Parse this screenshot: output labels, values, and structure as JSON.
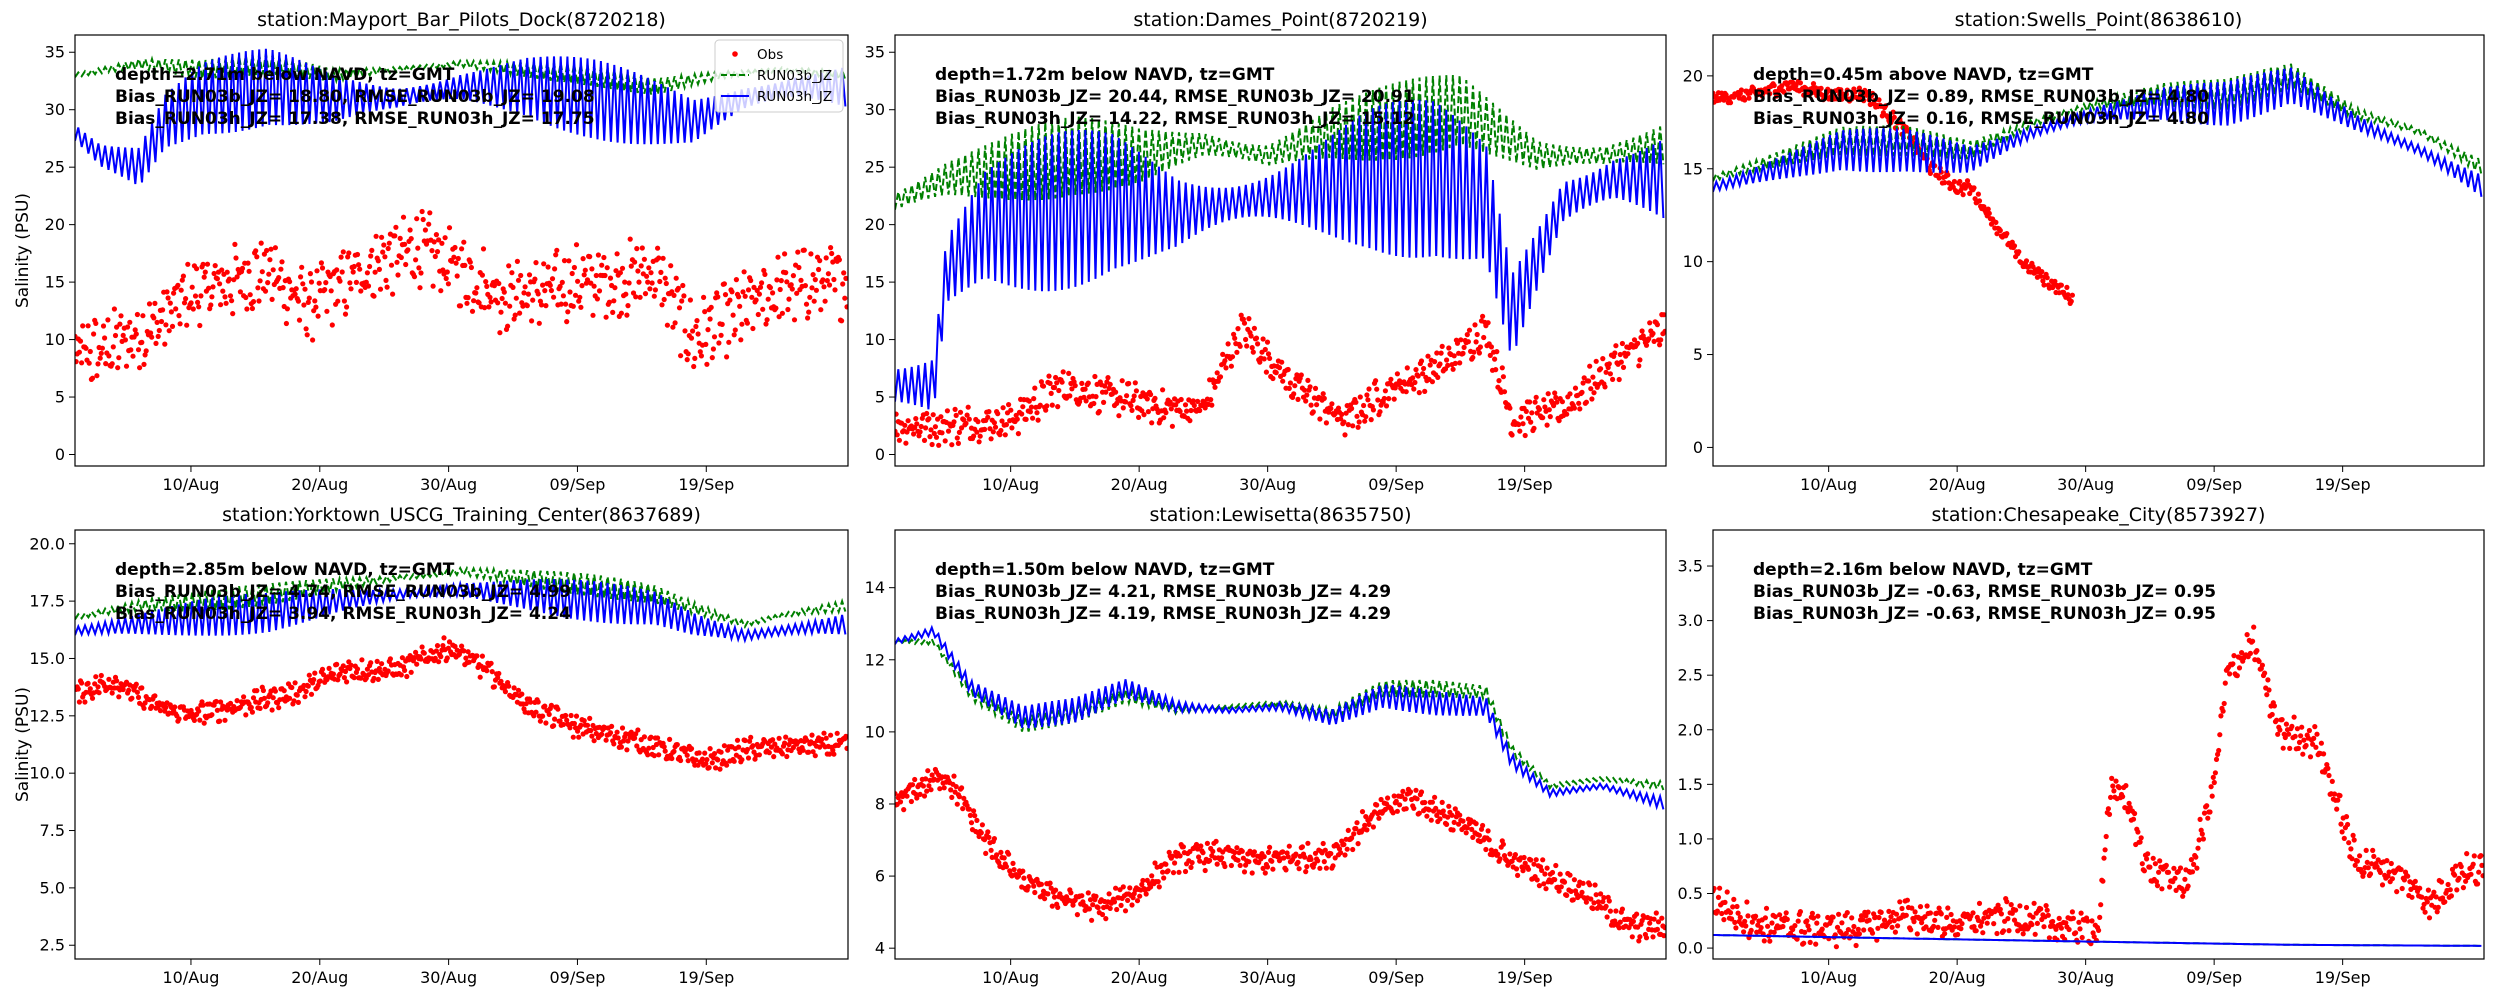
{
  "legend": {
    "panel": 0,
    "entries": [
      {
        "label": "Obs",
        "style": "marker",
        "color": "#ff0000"
      },
      {
        "label": "RUN03b_JZ",
        "style": "dashed",
        "color": "#008000"
      },
      {
        "label": "RUN03h_JZ",
        "style": "solid",
        "color": "#0000ff"
      }
    ]
  },
  "colors": {
    "obs": "#ff0000",
    "run03b": "#008000",
    "run03h": "#0000ff"
  },
  "chart_data": [
    {
      "type": "line",
      "title": "station:Mayport_Bar_Pilots_Dock(8720218)",
      "ylabel": "Salinity (PSU)",
      "xlabel": "",
      "x_range": [
        "2024-08-01",
        "2024-09-30"
      ],
      "x_ticks": [
        "10/Aug",
        "20/Aug",
        "30/Aug",
        "09/Sep",
        "19/Sep"
      ],
      "ylim": [
        -1,
        36.5
      ],
      "y_ticks": [
        "0",
        "5",
        "10",
        "15",
        "20",
        "25",
        "30",
        "35"
      ],
      "grid": false,
      "legend_position": "top-right",
      "annotations": [
        "depth=2.71m below NAVD, tz=GMT",
        "Bias_RUN03b_JZ= 18.80, RMSE_RUN03b_JZ= 19.08",
        "Bias_RUN03h_JZ= 17.38, RMSE_RUN03h_JZ= 17.75"
      ],
      "series": [
        {
          "name": "Obs",
          "kind": "scatter",
          "x": [
            "2024-08-01",
            "2024-08-03",
            "2024-08-05",
            "2024-08-07",
            "2024-08-10",
            "2024-08-13",
            "2024-08-16",
            "2024-08-19",
            "2024-08-22",
            "2024-08-25",
            "2024-08-28",
            "2024-08-31",
            "2024-09-03",
            "2024-09-06",
            "2024-09-09",
            "2024-09-12",
            "2024-09-15",
            "2024-09-18",
            "2024-09-21",
            "2024-09-24",
            "2024-09-27",
            "2024-09-30"
          ],
          "y": [
            8.5,
            9,
            10,
            11,
            14,
            15,
            16,
            13,
            15,
            17,
            18,
            16,
            14,
            14,
            15,
            15,
            16,
            10,
            12,
            14,
            15,
            15
          ],
          "spread": 5
        },
        {
          "name": "RUN03b_JZ",
          "kind": "dashed",
          "x": [
            "2024-08-01",
            "2024-08-06",
            "2024-08-11",
            "2024-08-16",
            "2024-08-21",
            "2024-08-26",
            "2024-08-31",
            "2024-09-05",
            "2024-09-10",
            "2024-09-15",
            "2024-09-20",
            "2024-09-25",
            "2024-09-30"
          ],
          "y": [
            33,
            34,
            33.5,
            34,
            33,
            33.5,
            34,
            33.5,
            33,
            32,
            33,
            33.5,
            33
          ],
          "amp": 1.3,
          "period": 0.52
        },
        {
          "name": "RUN03h_JZ",
          "kind": "solid",
          "x": [
            "2024-08-01",
            "2024-08-03",
            "2024-08-06",
            "2024-08-08",
            "2024-08-11",
            "2024-08-16",
            "2024-08-21",
            "2024-08-26",
            "2024-08-31",
            "2024-09-05",
            "2024-09-10",
            "2024-09-14",
            "2024-09-18",
            "2024-09-22",
            "2024-09-26",
            "2024-09-30"
          ],
          "y": [
            28,
            26,
            25,
            29,
            31,
            32,
            31,
            31,
            32,
            32,
            31,
            30,
            29,
            31,
            32,
            32
          ],
          "amp": 3.5,
          "period": 0.52
        }
      ]
    },
    {
      "type": "line",
      "title": "station:Dames_Point(8720219)",
      "ylabel": "",
      "xlabel": "",
      "x_range": [
        "2024-08-01",
        "2024-09-30"
      ],
      "x_ticks": [
        "10/Aug",
        "20/Aug",
        "30/Aug",
        "09/Sep",
        "19/Sep"
      ],
      "ylim": [
        -1,
        36.5
      ],
      "y_ticks": [
        "0",
        "5",
        "10",
        "15",
        "20",
        "25",
        "30",
        "35"
      ],
      "grid": false,
      "annotations": [
        "depth=1.72m below NAVD, tz=GMT",
        "Bias_RUN03b_JZ= 20.44, RMSE_RUN03b_JZ= 20.91",
        "Bias_RUN03h_JZ= 14.22, RMSE_RUN03h_JZ= 15.12"
      ],
      "series": [
        {
          "name": "Obs",
          "kind": "scatter",
          "x": [
            "2024-08-01",
            "2024-08-05",
            "2024-08-10",
            "2024-08-14",
            "2024-08-18",
            "2024-08-22",
            "2024-08-25",
            "2024-08-28",
            "2024-09-01",
            "2024-09-05",
            "2024-09-09",
            "2024-09-13",
            "2024-09-16",
            "2024-09-18",
            "2024-09-22",
            "2024-09-26",
            "2024-09-30"
          ],
          "y": [
            2.5,
            2.5,
            3,
            6,
            5,
            4,
            4,
            11,
            6,
            3,
            6,
            8,
            11,
            3,
            4,
            8,
            11
          ],
          "spread": 2.5
        },
        {
          "name": "RUN03b_JZ",
          "kind": "dashed",
          "x": [
            "2024-08-01",
            "2024-08-05",
            "2024-08-10",
            "2024-08-15",
            "2024-08-20",
            "2024-08-25",
            "2024-08-30",
            "2024-09-04",
            "2024-09-09",
            "2024-09-14",
            "2024-09-17",
            "2024-09-20",
            "2024-09-25",
            "2024-09-30"
          ],
          "y": [
            22,
            24,
            25,
            26,
            26,
            27,
            26,
            28,
            29,
            30,
            28,
            26,
            26,
            27
          ],
          "amp": 5,
          "period": 0.52
        },
        {
          "name": "RUN03h_JZ",
          "kind": "solid",
          "x": [
            "2024-08-01",
            "2024-08-04",
            "2024-08-05",
            "2024-08-08",
            "2024-08-13",
            "2024-08-18",
            "2024-08-23",
            "2024-08-28",
            "2024-09-02",
            "2024-09-07",
            "2024-09-12",
            "2024-09-16",
            "2024-09-18",
            "2024-09-22",
            "2024-09-26",
            "2024-09-30"
          ],
          "y": [
            6,
            6,
            16,
            20,
            21,
            22,
            21,
            22,
            23,
            24,
            24,
            22,
            12,
            22,
            24,
            24
          ],
          "amp": 7,
          "period": 0.52
        }
      ]
    },
    {
      "type": "line",
      "title": "station:Swells_Point(8638610)",
      "ylabel": "",
      "xlabel": "",
      "x_range": [
        "2024-08-01",
        "2024-09-30"
      ],
      "x_ticks": [
        "10/Aug",
        "20/Aug",
        "30/Aug",
        "09/Sep",
        "19/Sep"
      ],
      "ylim": [
        -1,
        22.2
      ],
      "y_ticks": [
        "0",
        "5",
        "10",
        "15",
        "20"
      ],
      "grid": false,
      "annotations": [
        "depth=0.45m above NAVD, tz=GMT",
        "Bias_RUN03b_JZ=  0.89, RMSE_RUN03b_JZ=  4.80",
        "Bias_RUN03h_JZ=  0.16, RMSE_RUN03h_JZ=  4.80"
      ],
      "series": [
        {
          "name": "Obs",
          "kind": "scatter",
          "x": [
            "2024-08-01",
            "2024-08-04",
            "2024-08-07",
            "2024-08-10",
            "2024-08-13",
            "2024-08-16",
            "2024-08-18",
            "2024-08-20",
            "2024-08-21",
            "2024-08-23",
            "2024-08-25",
            "2024-08-27",
            "2024-08-29"
          ],
          "y": [
            18.8,
            19,
            19.5,
            19,
            19,
            17,
            15,
            14,
            14,
            12,
            10,
            9,
            8
          ],
          "spread": 0.6
        },
        {
          "name": "RUN03b_JZ",
          "kind": "dashed",
          "x": [
            "2024-08-01",
            "2024-08-06",
            "2024-08-11",
            "2024-08-16",
            "2024-08-21",
            "2024-08-26",
            "2024-08-31",
            "2024-09-05",
            "2024-09-10",
            "2024-09-15",
            "2024-09-20",
            "2024-09-25",
            "2024-09-30"
          ],
          "y": [
            14.5,
            15.5,
            16.5,
            16.5,
            16,
            17.5,
            18.5,
            19,
            19,
            20,
            18,
            17,
            15
          ],
          "amp": 1.2,
          "period": 0.52
        },
        {
          "name": "RUN03h_JZ",
          "kind": "solid",
          "x": [
            "2024-08-01",
            "2024-08-06",
            "2024-08-11",
            "2024-08-16",
            "2024-08-21",
            "2024-08-26",
            "2024-08-31",
            "2024-09-05",
            "2024-09-10",
            "2024-09-15",
            "2024-09-20",
            "2024-09-25",
            "2024-09-30"
          ],
          "y": [
            14,
            15,
            16,
            16,
            15.5,
            17,
            18,
            18.5,
            18.5,
            19.5,
            17.5,
            16,
            14
          ],
          "amp": 1.2,
          "period": 0.52
        }
      ]
    },
    {
      "type": "line",
      "title": "station:Yorktown_USCG_Training_Center(8637689)",
      "ylabel": "Salinity (PSU)",
      "xlabel": "",
      "x_range": [
        "2024-08-01",
        "2024-09-30"
      ],
      "x_ticks": [
        "10/Aug",
        "20/Aug",
        "30/Aug",
        "09/Sep",
        "19/Sep"
      ],
      "ylim": [
        1.9,
        20.6
      ],
      "y_ticks": [
        "2.5",
        "5.0",
        "7.5",
        "10.0",
        "12.5",
        "15.0",
        "17.5",
        "20.0"
      ],
      "grid": false,
      "annotations": [
        "depth=2.85m below NAVD, tz=GMT",
        "Bias_RUN03b_JZ=  4.74, RMSE_RUN03b_JZ=  4.99",
        "Bias_RUN03h_JZ=  3.94, RMSE_RUN03h_JZ=  4.24"
      ],
      "series": [
        {
          "name": "Obs",
          "kind": "scatter",
          "x": [
            "2024-08-01",
            "2024-08-04",
            "2024-08-07",
            "2024-08-10",
            "2024-08-14",
            "2024-08-18",
            "2024-08-22",
            "2024-08-26",
            "2024-08-30",
            "2024-09-02",
            "2024-09-05",
            "2024-09-09",
            "2024-09-13",
            "2024-09-16",
            "2024-09-19",
            "2024-09-22",
            "2024-09-26",
            "2024-09-30"
          ],
          "y": [
            13.5,
            14,
            13,
            12.5,
            13,
            13.5,
            14.5,
            14.5,
            15.5,
            14.5,
            13,
            12,
            11.5,
            11,
            10.5,
            11,
            11.2,
            11.2
          ],
          "spread": 0.8
        },
        {
          "name": "RUN03b_JZ",
          "kind": "dashed",
          "x": [
            "2024-08-01",
            "2024-08-06",
            "2024-08-11",
            "2024-08-16",
            "2024-08-21",
            "2024-08-26",
            "2024-08-31",
            "2024-09-05",
            "2024-09-10",
            "2024-09-15",
            "2024-09-18",
            "2024-09-22",
            "2024-09-26",
            "2024-09-30"
          ],
          "y": [
            16.8,
            17.3,
            17.5,
            17.8,
            18.2,
            18.5,
            18.8,
            18.5,
            18.2,
            17.8,
            17.2,
            16.5,
            17,
            17.3
          ],
          "amp": 0.7,
          "period": 0.52
        },
        {
          "name": "RUN03h_JZ",
          "kind": "solid",
          "x": [
            "2024-08-01",
            "2024-08-06",
            "2024-08-11",
            "2024-08-16",
            "2024-08-21",
            "2024-08-26",
            "2024-08-31",
            "2024-09-05",
            "2024-09-10",
            "2024-09-15",
            "2024-09-18",
            "2024-09-22",
            "2024-09-26",
            "2024-09-30"
          ],
          "y": [
            16.2,
            16.5,
            16.8,
            17,
            17.5,
            17.8,
            18,
            17.8,
            17.5,
            17.2,
            16.5,
            16,
            16.3,
            16.5
          ],
          "amp": 0.9,
          "period": 0.52
        }
      ]
    },
    {
      "type": "line",
      "title": "station:Lewisetta(8635750)",
      "ylabel": "",
      "xlabel": "",
      "x_range": [
        "2024-08-01",
        "2024-09-30"
      ],
      "x_ticks": [
        "10/Aug",
        "20/Aug",
        "30/Aug",
        "09/Sep",
        "19/Sep"
      ],
      "ylim": [
        3.7,
        15.6
      ],
      "y_ticks": [
        "4",
        "6",
        "8",
        "10",
        "12",
        "14"
      ],
      "grid": false,
      "annotations": [
        "depth=1.50m below NAVD, tz=GMT",
        "Bias_RUN03b_JZ=  4.21, RMSE_RUN03b_JZ=  4.29",
        "Bias_RUN03h_JZ=  4.19, RMSE_RUN03h_JZ=  4.29"
      ],
      "series": [
        {
          "name": "Obs",
          "kind": "scatter",
          "x": [
            "2024-08-01",
            "2024-08-03",
            "2024-08-05",
            "2024-08-08",
            "2024-08-11",
            "2024-08-14",
            "2024-08-17",
            "2024-08-20",
            "2024-08-23",
            "2024-08-26",
            "2024-08-29",
            "2024-09-01",
            "2024-09-04",
            "2024-09-07",
            "2024-09-10",
            "2024-09-14",
            "2024-09-18",
            "2024-09-21",
            "2024-09-24",
            "2024-09-27",
            "2024-09-30"
          ],
          "y": [
            8,
            8.5,
            8.8,
            7,
            5.8,
            5.4,
            5.1,
            5.6,
            6.5,
            6.6,
            6.4,
            6.5,
            6.6,
            7.6,
            8.2,
            7.5,
            6.4,
            6,
            5.5,
            4.6,
            4.6
          ],
          "spread": 0.6
        },
        {
          "name": "RUN03b_JZ",
          "kind": "dashed",
          "x": [
            "2024-08-01",
            "2024-08-04",
            "2024-08-07",
            "2024-08-11",
            "2024-08-15",
            "2024-08-19",
            "2024-08-23",
            "2024-08-27",
            "2024-08-31",
            "2024-09-04",
            "2024-09-08",
            "2024-09-12",
            "2024-09-16",
            "2024-09-18",
            "2024-09-21",
            "2024-09-25",
            "2024-09-30"
          ],
          "y": [
            12.5,
            12.5,
            11,
            10.2,
            10.5,
            11,
            10.6,
            10.7,
            10.8,
            10.5,
            11.2,
            11.2,
            11.1,
            9.5,
            8.5,
            8.7,
            8.5
          ],
          "amp": 0.35,
          "period": 0.52
        },
        {
          "name": "RUN03h_JZ",
          "kind": "solid",
          "x": [
            "2024-08-01",
            "2024-08-04",
            "2024-08-07",
            "2024-08-11",
            "2024-08-15",
            "2024-08-19",
            "2024-08-23",
            "2024-08-27",
            "2024-08-31",
            "2024-09-04",
            "2024-09-08",
            "2024-09-12",
            "2024-09-16",
            "2024-09-18",
            "2024-09-21",
            "2024-09-25",
            "2024-09-30"
          ],
          "y": [
            12.5,
            12.8,
            11.2,
            10.4,
            10.6,
            11.2,
            10.7,
            10.6,
            10.7,
            10.4,
            11,
            10.8,
            10.7,
            9.2,
            8.3,
            8.5,
            8
          ],
          "amp": 0.35,
          "period": 0.52
        }
      ]
    },
    {
      "type": "line",
      "title": "station:Chesapeake_City(8573927)",
      "ylabel": "",
      "xlabel": "",
      "x_range": [
        "2024-08-01",
        "2024-09-30"
      ],
      "x_ticks": [
        "10/Aug",
        "20/Aug",
        "30/Aug",
        "09/Sep",
        "19/Sep"
      ],
      "ylim": [
        -0.1,
        3.83
      ],
      "y_ticks": [
        "0.0",
        "0.5",
        "1.0",
        "1.5",
        "2.0",
        "2.5",
        "3.0",
        "3.5"
      ],
      "grid": false,
      "annotations": [
        "depth=2.16m below NAVD, tz=GMT",
        "Bias_RUN03b_JZ= -0.63, RMSE_RUN03b_JZ=  0.95",
        "Bias_RUN03h_JZ= -0.63, RMSE_RUN03h_JZ=  0.95"
      ],
      "series": [
        {
          "name": "Obs",
          "kind": "scatter",
          "x": [
            "2024-08-01",
            "2024-08-03",
            "2024-08-05",
            "2024-08-08",
            "2024-08-12",
            "2024-08-16",
            "2024-08-20",
            "2024-08-24",
            "2024-08-28",
            "2024-08-31",
            "2024-09-01",
            "2024-09-02",
            "2024-09-04",
            "2024-09-07",
            "2024-09-09",
            "2024-09-10",
            "2024-09-12",
            "2024-09-14",
            "2024-09-17",
            "2024-09-20",
            "2024-09-23",
            "2024-09-26",
            "2024-09-28",
            "2024-09-30"
          ],
          "y": [
            0.45,
            0.3,
            0.2,
            0.18,
            0.18,
            0.3,
            0.22,
            0.3,
            0.2,
            0.18,
            1.5,
            1.4,
            0.7,
            0.6,
            1.5,
            2.5,
            2.8,
            2,
            1.9,
            0.8,
            0.7,
            0.4,
            0.7,
            0.7
          ],
          "spread": 0.25
        },
        {
          "name": "RUN03b_JZ",
          "kind": "dashed",
          "x": [
            "2024-08-01",
            "2024-08-15",
            "2024-08-30",
            "2024-09-15",
            "2024-09-30"
          ],
          "y": [
            0.12,
            0.09,
            0.06,
            0.03,
            0.02
          ],
          "amp": 0,
          "period": 0.52
        },
        {
          "name": "RUN03h_JZ",
          "kind": "solid",
          "x": [
            "2024-08-01",
            "2024-08-15",
            "2024-08-30",
            "2024-09-15",
            "2024-09-30"
          ],
          "y": [
            0.12,
            0.09,
            0.06,
            0.03,
            0.02
          ],
          "amp": 0,
          "period": 0.52
        }
      ]
    }
  ]
}
